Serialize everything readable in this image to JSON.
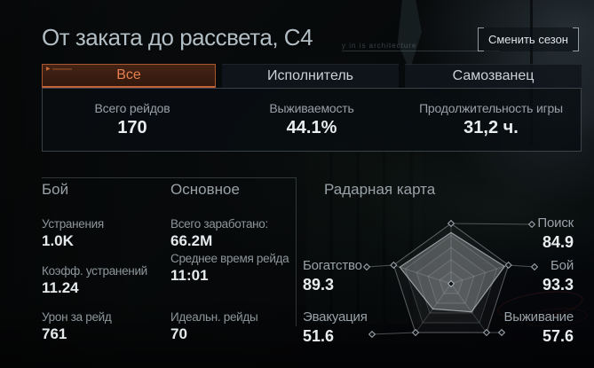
{
  "header": {
    "title": "От заката до рассвета, С4",
    "ghost_text": "y in is architecture",
    "change_season_button": "Сменить сезон"
  },
  "tabs": [
    {
      "label": "Все",
      "active": true
    },
    {
      "label": "Исполнитель",
      "active": false
    },
    {
      "label": "Самозванец",
      "active": false
    }
  ],
  "summary": [
    {
      "label": "Всего рейдов",
      "value": "170"
    },
    {
      "label": "Выживаемость",
      "value": "44.1%"
    },
    {
      "label": "Продолжительность игры",
      "value": "31,2 ч."
    }
  ],
  "combat_section": {
    "heading": "Бой",
    "stats": [
      {
        "label": "Устранения",
        "value": "1.0K"
      },
      {
        "label": "Коэфф. устранений",
        "value": "11.24"
      },
      {
        "label": "Урон за рейд",
        "value": "761"
      }
    ]
  },
  "general_section": {
    "heading": "Основное",
    "stats": [
      {
        "label": "Всего заработано:",
        "value": "66.2M"
      },
      {
        "label": "Среднее время рейда",
        "value": "11:01"
      },
      {
        "label": "Идеальн. рейды",
        "value": "70"
      }
    ]
  },
  "radar_section": {
    "heading": "Радарная карта"
  },
  "chart_data": {
    "type": "radar",
    "title": "Радарная карта",
    "categories": [
      "Поиск",
      "Бой",
      "Выживание",
      "Эвакуация",
      "Богатство"
    ],
    "values": [
      84.9,
      93.3,
      57.6,
      51.6,
      89.3
    ],
    "max": 100,
    "grid_levels": 5,
    "legend_position": "around"
  },
  "colors": {
    "accent_orange": "#c2633c",
    "active_tab_text": "#e87e50",
    "value_text": "#e9edee",
    "label_text": "#96a0a6",
    "panel_border": "#78828a",
    "background": "#060809"
  }
}
